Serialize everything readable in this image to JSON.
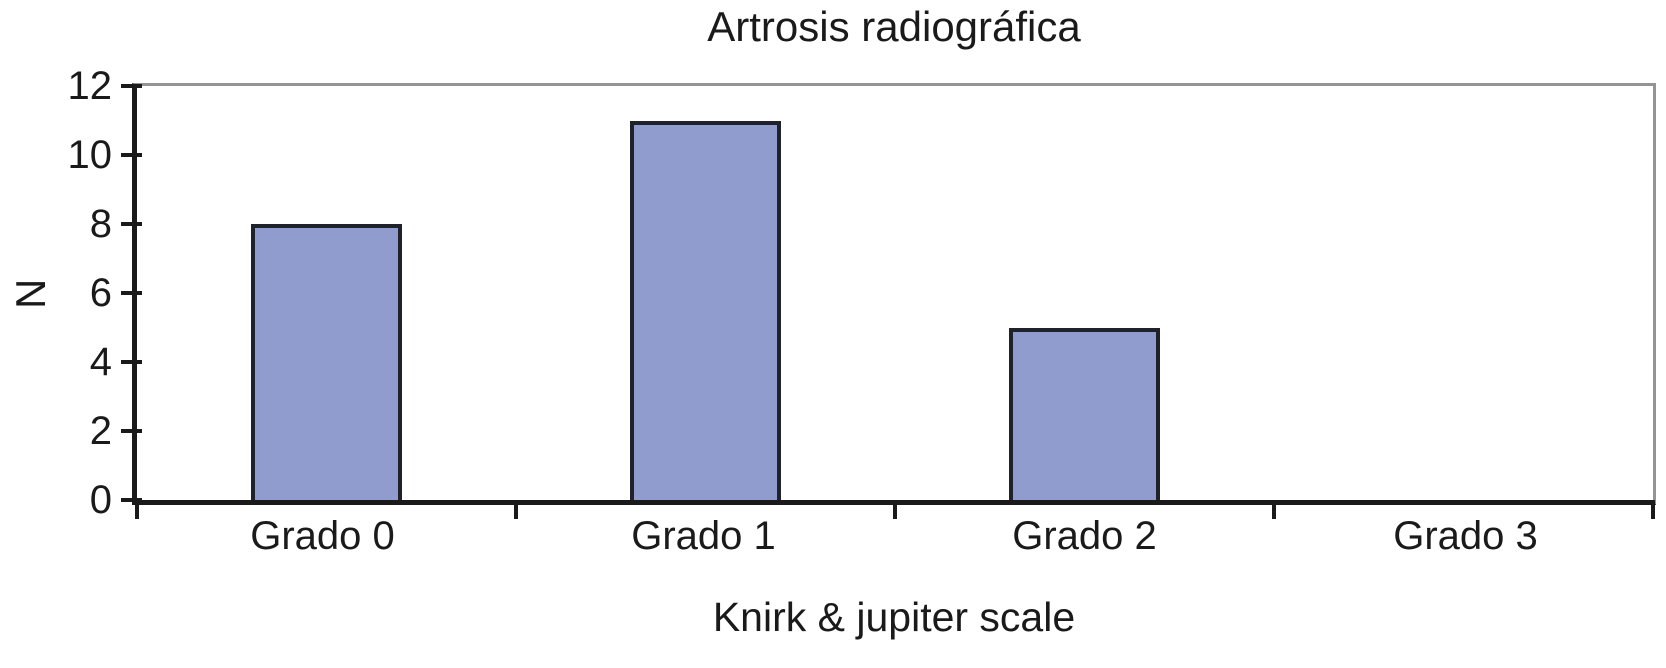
{
  "chart_data": {
    "type": "bar",
    "title": "Artrosis radiográfica",
    "categories": [
      "Grado 0",
      "Grado 1",
      "Grado 2",
      "Grado 3"
    ],
    "values": [
      8,
      11,
      5,
      0
    ],
    "xlabel": "Knirk & jupiter scale",
    "ylabel": "N",
    "ylim": [
      0,
      12
    ],
    "yticks": [
      0,
      2,
      4,
      6,
      8,
      10,
      12
    ],
    "grid": false,
    "legend_position": "none",
    "bar_width_fraction": 0.4,
    "colors": {
      "bar_fill": "#909CCE",
      "bar_border": "#20222B",
      "axis": "#1A1A1A",
      "plot_top_border": "#949494",
      "text": "#1A1A1A",
      "background": "#FFFFFF"
    }
  }
}
